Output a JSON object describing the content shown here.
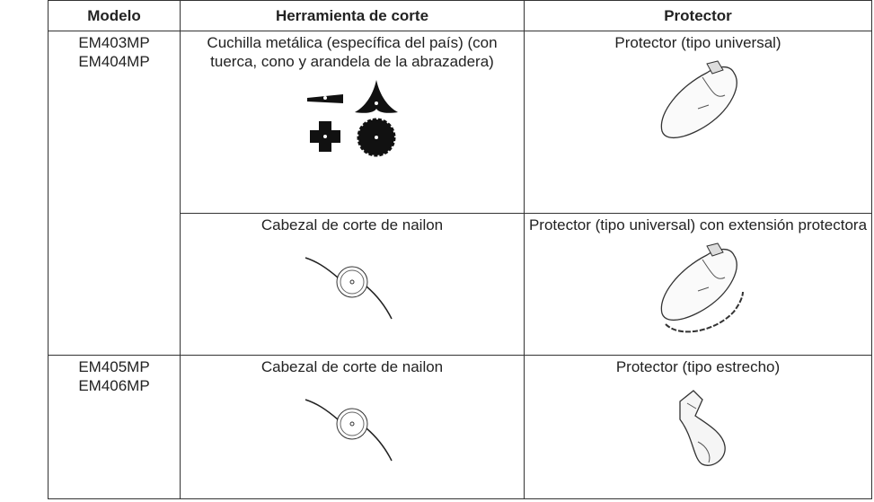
{
  "table": {
    "headers": [
      "Modelo",
      "Herramienta de corte",
      "Protector"
    ],
    "rows": [
      {
        "model": [
          "EM403MP",
          "EM404MP"
        ],
        "entries": [
          {
            "tool": "Cuchilla metálica (específica del país) (con tuerca, cono y arandela de la abrazadera)",
            "protector": "Protector (tipo universal)"
          },
          {
            "tool": "Cabezal de corte de nailon",
            "protector": "Protector (tipo universal) con extensión protectora"
          }
        ]
      },
      {
        "model": [
          "EM405MP",
          "EM406MP"
        ],
        "entries": [
          {
            "tool": "Cabezal de corte de nailon",
            "protector": "Protector (tipo estrecho)"
          }
        ]
      }
    ]
  }
}
